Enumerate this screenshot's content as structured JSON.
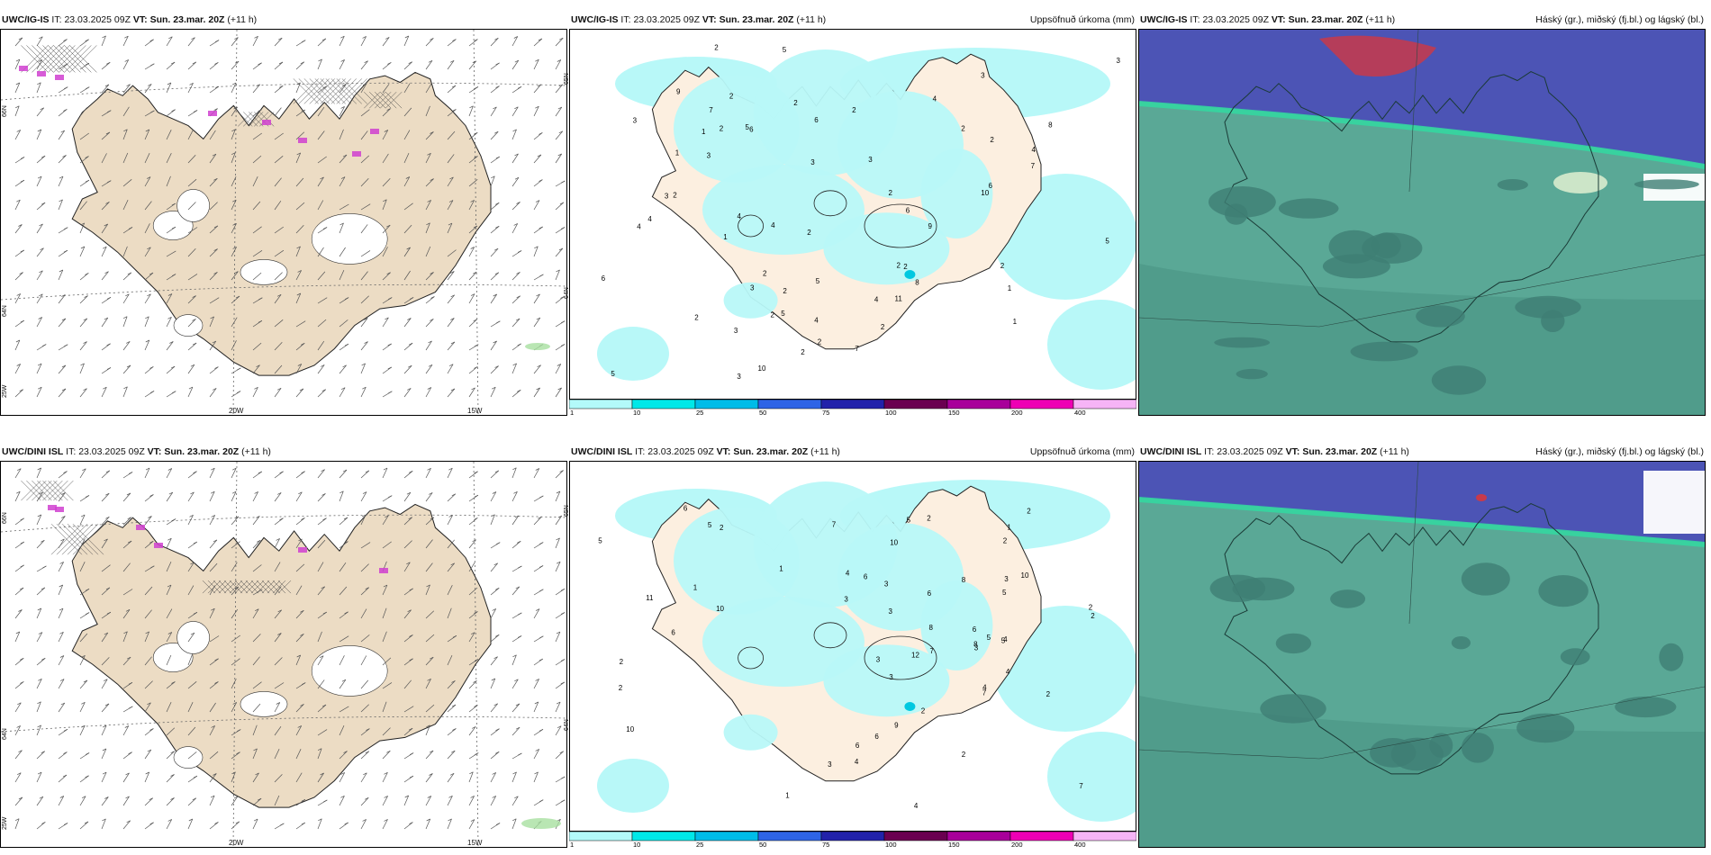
{
  "rows": [
    {
      "model": "UWC/IG-IS",
      "it_label": "IT:",
      "it_value": "23.03.2025 09Z",
      "vt_label": "VT:",
      "vt_value": "Sun. 23.mar. 20Z",
      "lead": "(+11 h)"
    },
    {
      "model": "UWC/DINI ISL",
      "it_label": "IT:",
      "it_value": "23.03.2025 09Z",
      "vt_label": "VT:",
      "vt_value": "Sun. 23.mar. 20Z",
      "lead": "(+11 h)"
    }
  ],
  "precip_title": "Uppsöfnuð úrkoma (mm)",
  "cloud_title": "Háský (gr.), miðský (fj.bl.) og lágský (bl.)",
  "lon_labels": [
    "20W",
    "15W"
  ],
  "lat_labels": [
    "66N",
    "64N",
    "25W"
  ],
  "precip_lat_labels": [
    "65N",
    "64N"
  ],
  "colorbar": {
    "ticks": [
      "1",
      "10",
      "25",
      "50",
      "75",
      "100",
      "150",
      "200",
      "400"
    ],
    "colors": [
      "#b3fafa",
      "#00e8e8",
      "#00bce8",
      "#2e64e6",
      "#2222aa",
      "#6a0050",
      "#a8009a",
      "#ee00b4",
      "#f6b4f6"
    ]
  },
  "colors": {
    "land": "#ecdcc4",
    "precip_light": "#b8f8f8",
    "precip_land": "#fcefe0",
    "cloud_low": "#5aa896",
    "cloud_low_dark": "#3f7e74",
    "cloud_mid": "#4a4ab8",
    "cloud_high": "#c83a4a",
    "front": "#34d6a0"
  },
  "precip_numbers_top": [
    "6",
    "7",
    "2",
    "5",
    "2",
    "2",
    "1",
    "2",
    "4",
    "2",
    "8",
    "3",
    "4",
    "8",
    "7",
    "3",
    "6",
    "4",
    "6",
    "2",
    "7",
    "4",
    "4",
    "9",
    "4",
    "5",
    "2",
    "4",
    "3",
    "2",
    "3",
    "2",
    "5",
    "4",
    "2",
    "3",
    "10",
    "5",
    "1",
    "2",
    "2",
    "5",
    "11",
    "6",
    "2",
    "10",
    "3",
    "5",
    "2",
    "6",
    "1",
    "2",
    "3",
    "9",
    "3",
    "2",
    "2",
    "1",
    "1",
    "2",
    "3",
    "3",
    "2",
    "2"
  ],
  "precip_numbers_bottom": [
    "6",
    "2",
    "1",
    "1",
    "2",
    "3",
    "4",
    "2",
    "8",
    "9",
    "10",
    "7",
    "6",
    "4",
    "5",
    "12",
    "3",
    "5",
    "11",
    "5",
    "7",
    "4",
    "6",
    "4",
    "7",
    "8",
    "3",
    "4",
    "2",
    "1",
    "3",
    "10",
    "2",
    "7",
    "6",
    "5",
    "3",
    "3",
    "8",
    "10",
    "2",
    "6",
    "5",
    "4",
    "6",
    "2",
    "2",
    "3",
    "1",
    "2",
    "3",
    "2",
    "10",
    "5",
    "6",
    "2"
  ]
}
